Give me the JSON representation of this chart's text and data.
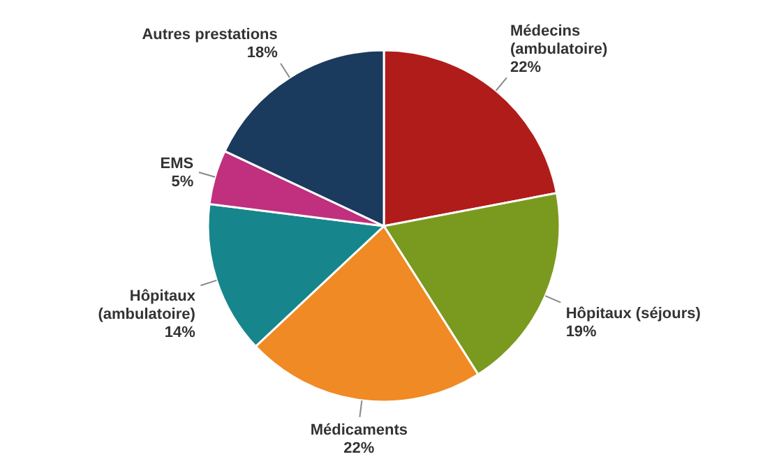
{
  "chart_data": {
    "type": "pie",
    "categories": [
      "Médecins (ambulatoire)",
      "Hôpitaux (séjours)",
      "Médicaments",
      "Hôpitaux (ambulatoire)",
      "EMS",
      "Autres prestations"
    ],
    "values": [
      22,
      19,
      22,
      14,
      5,
      18
    ],
    "value_labels": [
      "22%",
      "19%",
      "22%",
      "14%",
      "5%",
      "18%"
    ],
    "colors": [
      "#b01c1a",
      "#7a9a1f",
      "#f08a24",
      "#16868c",
      "#c0307f",
      "#1a3a5e"
    ]
  }
}
